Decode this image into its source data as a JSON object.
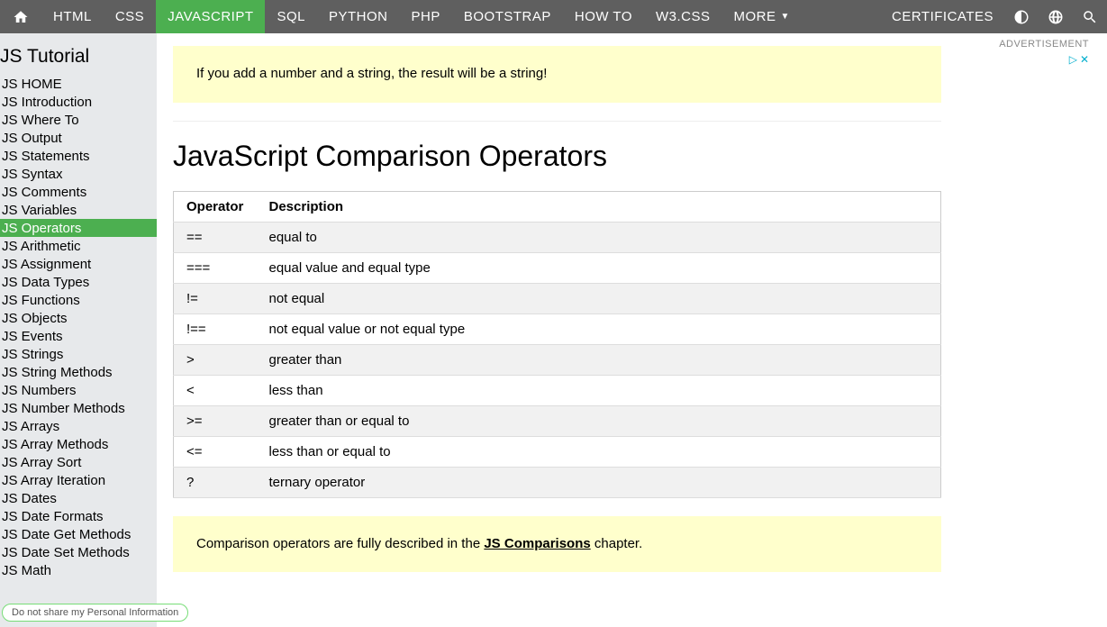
{
  "topnav": {
    "items": [
      {
        "label": "HTML",
        "active": false
      },
      {
        "label": "CSS",
        "active": false
      },
      {
        "label": "JAVASCRIPT",
        "active": true
      },
      {
        "label": "SQL",
        "active": false
      },
      {
        "label": "PYTHON",
        "active": false
      },
      {
        "label": "PHP",
        "active": false
      },
      {
        "label": "BOOTSTRAP",
        "active": false
      },
      {
        "label": "HOW TO",
        "active": false
      },
      {
        "label": "W3.CSS",
        "active": false
      },
      {
        "label": "MORE ",
        "active": false,
        "caret": true
      }
    ],
    "certificates": "CERTIFICATES"
  },
  "sidebar": {
    "title": "JS Tutorial",
    "items": [
      {
        "label": "JS HOME",
        "active": false
      },
      {
        "label": "JS Introduction",
        "active": false
      },
      {
        "label": "JS Where To",
        "active": false
      },
      {
        "label": "JS Output",
        "active": false
      },
      {
        "label": "JS Statements",
        "active": false
      },
      {
        "label": "JS Syntax",
        "active": false
      },
      {
        "label": "JS Comments",
        "active": false
      },
      {
        "label": "JS Variables",
        "active": false
      },
      {
        "label": "JS Operators",
        "active": true
      },
      {
        "label": "JS Arithmetic",
        "active": false
      },
      {
        "label": "JS Assignment",
        "active": false
      },
      {
        "label": "JS Data Types",
        "active": false
      },
      {
        "label": "JS Functions",
        "active": false
      },
      {
        "label": "JS Objects",
        "active": false
      },
      {
        "label": "JS Events",
        "active": false
      },
      {
        "label": "JS Strings",
        "active": false
      },
      {
        "label": "JS String Methods",
        "active": false
      },
      {
        "label": "JS Numbers",
        "active": false
      },
      {
        "label": "JS Number Methods",
        "active": false
      },
      {
        "label": "JS Arrays",
        "active": false
      },
      {
        "label": "JS Array Methods",
        "active": false
      },
      {
        "label": "JS Array Sort",
        "active": false
      },
      {
        "label": "JS Array Iteration",
        "active": false
      },
      {
        "label": "JS Dates",
        "active": false
      },
      {
        "label": "JS Date Formats",
        "active": false
      },
      {
        "label": "JS Date Get Methods",
        "active": false
      },
      {
        "label": "JS Date Set Methods",
        "active": false
      },
      {
        "label": "JS Math",
        "active": false
      }
    ]
  },
  "content": {
    "note1": "If you add a number and a string, the result will be a string!",
    "heading": "JavaScript Comparison Operators",
    "table": {
      "columns": [
        "Operator",
        "Description"
      ],
      "rows": [
        [
          "==",
          "equal to"
        ],
        [
          "===",
          "equal value and equal type"
        ],
        [
          "!=",
          "not equal"
        ],
        [
          "!==",
          "not equal value or not equal type"
        ],
        [
          ">",
          "greater than"
        ],
        [
          "<",
          "less than"
        ],
        [
          ">=",
          "greater than or equal to"
        ],
        [
          "<=",
          "less than or equal to"
        ],
        [
          "?",
          "ternary operator"
        ]
      ]
    },
    "note2_pre": "Comparison operators are fully described in the ",
    "note2_link": "JS Comparisons",
    "note2_post": " chapter."
  },
  "ad": {
    "label": "ADVERTISEMENT"
  },
  "privacy": "Do not share my Personal Information",
  "colors": {
    "topnav_bg": "#5f5f5f",
    "green": "#4caf50",
    "sidebar_bg": "#e7e9eb",
    "note_bg": "#ffffcc",
    "stripe_bg": "#f1f1f1"
  }
}
